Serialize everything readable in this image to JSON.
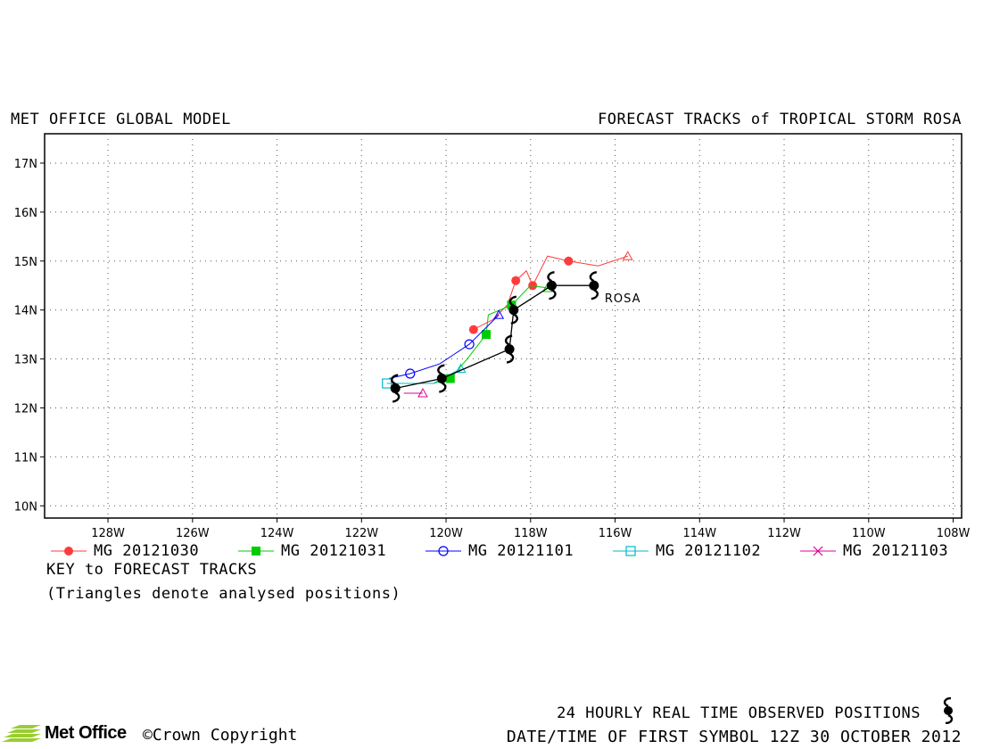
{
  "header": {
    "left_title": "MET OFFICE GLOBAL MODEL",
    "right_title": "FORECAST TRACKS of TROPICAL STORM ROSA"
  },
  "map": {
    "lon_range": [
      -129.5,
      -107.8
    ],
    "lat_range": [
      9.75,
      17.6
    ],
    "x_ticks": [
      {
        "value": -128,
        "label": "128W"
      },
      {
        "value": -126,
        "label": "126W"
      },
      {
        "value": -124,
        "label": "124W"
      },
      {
        "value": -122,
        "label": "122W"
      },
      {
        "value": -120,
        "label": "120W"
      },
      {
        "value": -118,
        "label": "118W"
      },
      {
        "value": -116,
        "label": "116W"
      },
      {
        "value": -114,
        "label": "114W"
      },
      {
        "value": -112,
        "label": "112W"
      },
      {
        "value": -110,
        "label": "110W"
      },
      {
        "value": -108,
        "label": "108W"
      }
    ],
    "y_ticks": [
      {
        "value": 10,
        "label": "10N"
      },
      {
        "value": 11,
        "label": "11N"
      },
      {
        "value": 12,
        "label": "12N"
      },
      {
        "value": 13,
        "label": "13N"
      },
      {
        "value": 14,
        "label": "14N"
      },
      {
        "value": 15,
        "label": "15N"
      },
      {
        "value": 16,
        "label": "16N"
      },
      {
        "value": 17,
        "label": "17N"
      }
    ],
    "grid": "dotted",
    "storm_label": "ROSA",
    "observed_track": {
      "color": "#000000",
      "points": [
        [
          -116.5,
          14.5
        ],
        [
          -117.5,
          14.5
        ],
        [
          -118.4,
          14.0
        ],
        [
          -118.5,
          13.2
        ],
        [
          -120.1,
          12.6
        ],
        [
          -121.2,
          12.4
        ]
      ]
    },
    "forecast_tracks": [
      {
        "name": "MG 20121030",
        "color": "#ff3b3b",
        "marker": "filled-circle",
        "analysed": [
          -115.7,
          15.1
        ],
        "points": [
          [
            -115.7,
            15.1
          ],
          [
            -116.4,
            14.9
          ],
          [
            -117.1,
            15.0
          ],
          [
            -117.6,
            15.1
          ],
          [
            -117.95,
            14.5
          ],
          [
            -118.1,
            14.8
          ],
          [
            -118.35,
            14.6
          ],
          [
            -118.55,
            14.1
          ],
          [
            -118.9,
            13.8
          ],
          [
            -119.35,
            13.6
          ]
        ],
        "markers": [
          [
            -117.1,
            15.0
          ],
          [
            -117.95,
            14.5
          ],
          [
            -118.35,
            14.6
          ],
          [
            -119.35,
            13.6
          ]
        ]
      },
      {
        "name": "MG 20121031",
        "color": "#00cc00",
        "marker": "filled-square",
        "analysed": [
          -117.6,
          14.45
        ],
        "points": [
          [
            -117.6,
            14.45
          ],
          [
            -118.0,
            14.5
          ],
          [
            -118.45,
            14.1
          ],
          [
            -119.0,
            13.9
          ],
          [
            -119.05,
            13.5
          ],
          [
            -119.5,
            13.0
          ],
          [
            -119.9,
            12.6
          ],
          [
            -120.3,
            12.5
          ]
        ],
        "markers": [
          [
            -118.45,
            14.1
          ],
          [
            -119.05,
            13.5
          ],
          [
            -119.9,
            12.6
          ]
        ]
      },
      {
        "name": "MG 20121101",
        "color": "#0000ff",
        "marker": "open-circle",
        "analysed": [
          -118.75,
          13.9
        ],
        "points": [
          [
            -118.75,
            13.9
          ],
          [
            -119.45,
            13.3
          ],
          [
            -120.15,
            12.9
          ],
          [
            -120.85,
            12.7
          ],
          [
            -121.35,
            12.6
          ]
        ],
        "markers": [
          [
            -119.45,
            13.3
          ],
          [
            -120.85,
            12.7
          ]
        ]
      },
      {
        "name": "MG 20121102",
        "color": "#00bbcc",
        "marker": "open-square",
        "analysed": [
          -119.65,
          12.8
        ],
        "points": [
          [
            -119.65,
            12.8
          ],
          [
            -120.3,
            12.5
          ],
          [
            -120.9,
            12.5
          ],
          [
            -121.4,
            12.5
          ]
        ],
        "markers": [
          [
            -121.4,
            12.5
          ]
        ]
      },
      {
        "name": "MG 20121103",
        "color": "#dd0099",
        "marker": "cross",
        "analysed": [
          -120.55,
          12.3
        ],
        "points": [
          [
            -120.55,
            12.3
          ],
          [
            -121.0,
            12.3
          ]
        ],
        "markers": []
      }
    ]
  },
  "legend": {
    "items": [
      {
        "label": "MG 20121030",
        "color": "#ff3b3b",
        "marker": "filled-circle"
      },
      {
        "label": "MG 20121031",
        "color": "#00cc00",
        "marker": "filled-square"
      },
      {
        "label": "MG 20121101",
        "color": "#0000ff",
        "marker": "open-circle"
      },
      {
        "label": "MG 20121102",
        "color": "#00bbcc",
        "marker": "open-square"
      },
      {
        "label": "MG 20121103",
        "color": "#dd0099",
        "marker": "cross"
      }
    ],
    "key_title": "KEY to FORECAST TRACKS",
    "key_note": "(Triangles denote analysed positions)"
  },
  "footer": {
    "observed_note": "24 HOURLY REAL TIME OBSERVED POSITIONS",
    "first_symbol": "DATE/TIME OF FIRST SYMBOL 12Z 30 OCTOBER 2012",
    "logo_text": "Met Office",
    "copyright": "©Crown Copyright"
  }
}
